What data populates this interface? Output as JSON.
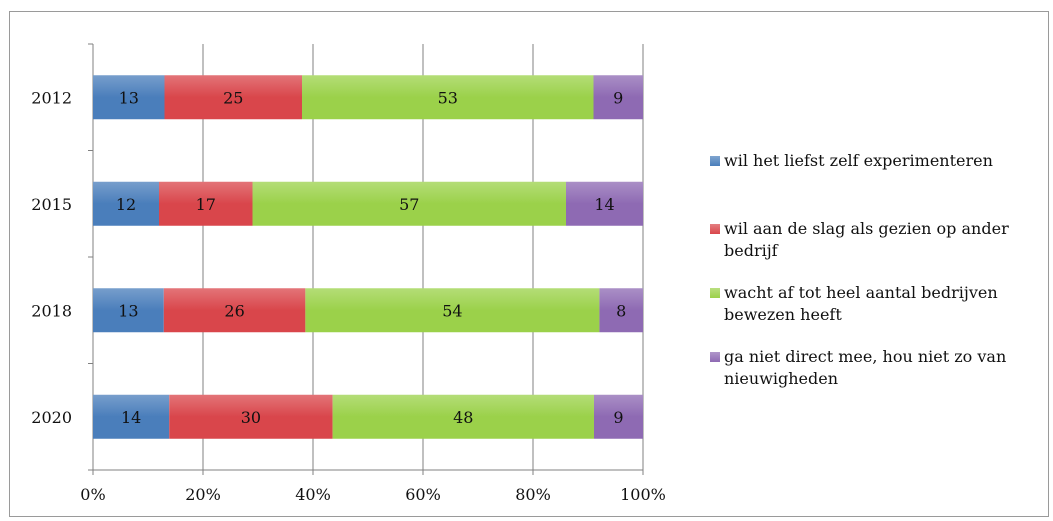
{
  "chart_data": {
    "type": "bar",
    "orientation": "horizontal",
    "stacked": "percent",
    "categories": [
      "2012",
      "2015",
      "2018",
      "2020"
    ],
    "series": [
      {
        "name": "wil het liefst zelf experimenteren",
        "values": [
          13,
          12,
          13,
          14
        ],
        "color": "#4a7ebb"
      },
      {
        "name": "wil aan de slag als gezien op ander bedrijf",
        "values": [
          25,
          17,
          26,
          30
        ],
        "color": "#d9464b"
      },
      {
        "name": "wacht af tot heel aantal bedrijven bewezen heeft",
        "values": [
          53,
          57,
          54,
          48
        ],
        "color": "#9bd14a"
      },
      {
        "name": "ga niet direct mee, hou niet zo van nieuwigheden",
        "values": [
          9,
          14,
          8,
          9
        ],
        "color": "#8e6ab3"
      }
    ],
    "x_ticks": [
      "0%",
      "20%",
      "40%",
      "60%",
      "80%",
      "100%"
    ],
    "xlim": [
      0,
      100
    ],
    "grid": "vertical",
    "legend_position": "right",
    "data_labels": true
  }
}
